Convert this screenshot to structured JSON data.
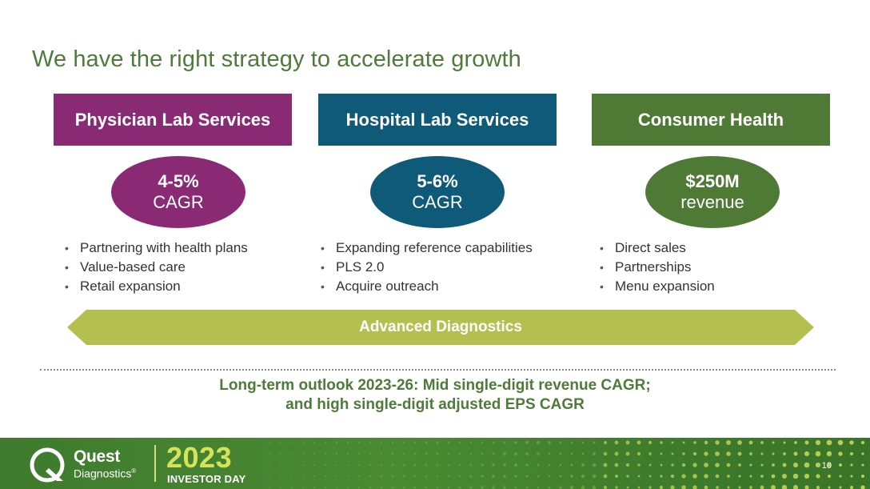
{
  "title": "We have the right strategy to accelerate growth",
  "columns": [
    {
      "header": "Physician Lab Services",
      "metric_value": "4-5%",
      "metric_label": "CAGR",
      "bullets": [
        "Partnering with health plans",
        "Value-based care",
        "Retail expansion"
      ]
    },
    {
      "header": "Hospital Lab Services",
      "metric_value": "5-6%",
      "metric_label": "CAGR",
      "bullets": [
        "Expanding reference capabilities",
        "PLS 2.0",
        "Acquire outreach"
      ]
    },
    {
      "header": "Consumer Health",
      "metric_value": "$250M",
      "metric_label": "revenue",
      "bullets": [
        "Direct sales",
        "Partnerships",
        "Menu expansion"
      ]
    }
  ],
  "banner": "Advanced Diagnostics",
  "outlook": {
    "line1": "Long-term outlook 2023-26: Mid single-digit revenue CAGR;",
    "line2": "and high single-digit adjusted EPS CAGR"
  },
  "footer": {
    "brand_name": "Quest",
    "brand_sub": "Diagnostics",
    "brand_mark": "®",
    "year": "2023",
    "event": "INVESTOR DAY",
    "page_number": "10"
  },
  "colors": {
    "physician": "#8b2a74",
    "hospital": "#0e5a78",
    "consumer": "#4f7a36",
    "banner": "#b3bf4f",
    "title": "#4e7a3a",
    "footer_green": "#4a8a32",
    "footer_year": "#d4e35a"
  }
}
